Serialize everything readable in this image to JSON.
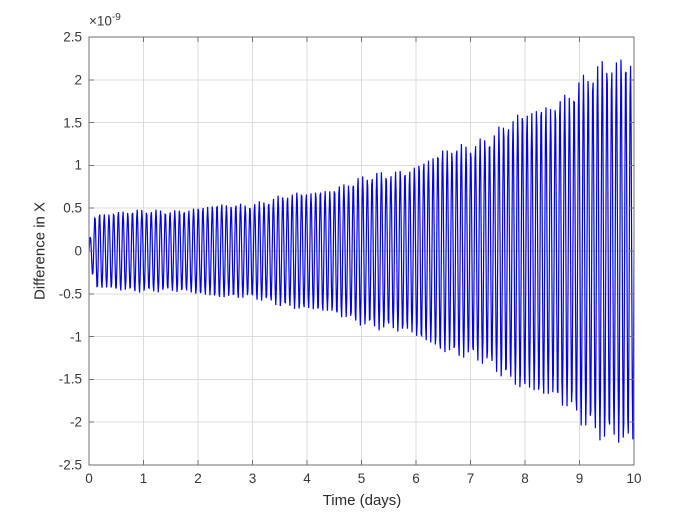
{
  "chart_data": {
    "type": "line",
    "title": "",
    "xlabel": "Time (days)",
    "ylabel": "Difference in X",
    "y_multiplier_base": "×10",
    "y_multiplier_exponent": "-9",
    "xlim": [
      0,
      10
    ],
    "ylim_scaled_1e9": [
      -2.5,
      2.5
    ],
    "x_ticks": [
      0,
      1,
      2,
      3,
      4,
      5,
      6,
      7,
      8,
      9,
      10
    ],
    "y_ticks": [
      -2.5,
      -2,
      -1.5,
      -1,
      -0.5,
      0,
      0.5,
      1,
      1.5,
      2,
      2.5
    ],
    "grid": true,
    "legend": null,
    "series_name": "difference-in-x",
    "series_color": "#0000ee",
    "grid_color": "#dcdcdc",
    "axis_color": "#707070",
    "signal": {
      "kind": "zero-mean oscillation with growing envelope (units 1e-9)",
      "cycles_per_day": 11.6,
      "envelope_t_days": [
        0,
        1,
        2,
        3,
        4,
        5,
        6,
        7,
        8,
        9,
        10
      ],
      "envelope_amp_1e9": [
        0.47,
        0.49,
        0.53,
        0.6,
        0.72,
        0.88,
        1.07,
        1.34,
        1.67,
        2.07,
        2.48
      ],
      "start_ramp_days": 0.12,
      "modulation": [
        {
          "period_days": 1.4,
          "depth": 0.06
        },
        {
          "period_days": 0.37,
          "depth": 0.05
        }
      ]
    }
  }
}
